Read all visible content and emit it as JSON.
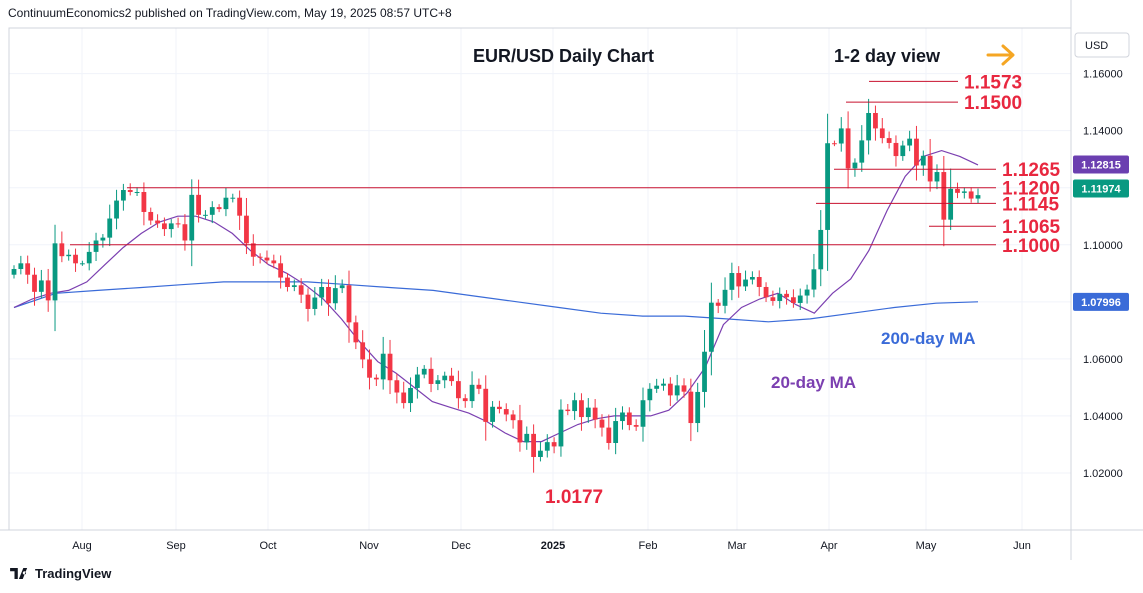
{
  "header": {
    "published_by": "ContinuumEconomics2 published on TradingView.com, May 19, 2025 08:57 UTC+8"
  },
  "footer": {
    "brand": "TradingView",
    "logo_icon": "tradingview-logo-icon"
  },
  "colors": {
    "up": "#089981",
    "down": "#f23645",
    "level_line": "#c8102e",
    "level_label": "#e8273f",
    "ma20": "#7b3fb0",
    "ma200": "#3a6bd8",
    "arrow": "#f5a623",
    "grid": "#f0f3fa"
  },
  "chart_data": {
    "type": "candlestick",
    "title": "EUR/USD Daily Chart",
    "subtitle": "1-2 day view",
    "direction_icon": "right-arrow-icon",
    "currency": "USD",
    "y_ticks": [
      "1.16000",
      "1.14000",
      "1.12000",
      "1.10000",
      "1.08000",
      "1.06000",
      "1.04000",
      "1.02000"
    ],
    "y_range": [
      1.0,
      1.176
    ],
    "x_range": [
      "2025-07-11",
      "2025-07-11"
    ],
    "x_ticks": [
      "Aug",
      "Sep",
      "Oct",
      "Nov",
      "Dec",
      "2025",
      "Feb",
      "Mar",
      "Apr",
      "May",
      "Jun"
    ],
    "price_labels": [
      {
        "text": "1.12815",
        "value": 1.12815,
        "color": "#6b3fb0"
      },
      {
        "text": "1.11974",
        "value": 1.11974,
        "color": "#089981"
      },
      {
        "text": "1.07996",
        "value": 1.07996,
        "color": "#3a6bd8"
      }
    ],
    "levels": [
      {
        "label": "1.1573",
        "value": 1.1573,
        "from": "Apr 21",
        "to": "May 20"
      },
      {
        "label": "1.1500",
        "value": 1.15,
        "from": "Apr 14",
        "to": "May 20"
      },
      {
        "label": "1.1265",
        "value": 1.1265,
        "from": "Apr 4",
        "to": "May 26"
      },
      {
        "label": "1.1200",
        "value": 1.12,
        "from": "Aug 11",
        "to": "May 26"
      },
      {
        "label": "1.1145",
        "value": 1.1145,
        "from": "Mar 31",
        "to": "May 26"
      },
      {
        "label": "1.1065",
        "value": 1.1065,
        "from": "May 12",
        "to": "May 26"
      },
      {
        "label": "1.1000",
        "value": 1.1,
        "from": "Jul 29",
        "to": "May 26"
      }
    ],
    "annotations": [
      {
        "text": "1.0177",
        "value": 1.0177
      },
      {
        "text": "200-day MA"
      },
      {
        "text": "20-day MA"
      }
    ],
    "series": [
      {
        "name": "EUR/USD",
        "values": [
          1.0915,
          1.0935,
          1.0895,
          1.0835,
          1.0875,
          1.0805,
          1.1005,
          1.096,
          1.0965,
          1.0935,
          1.0935,
          1.0975,
          1.1015,
          1.1025,
          1.1092,
          1.1155,
          1.1192,
          1.1185,
          1.1185,
          1.1115,
          1.1085,
          1.1075,
          1.1055,
          1.1075,
          1.1072,
          1.1015,
          1.1175,
          1.1105,
          1.1105,
          1.1132,
          1.1125,
          1.1165,
          1.1165,
          1.1102,
          1.1005,
          1.0958,
          1.0955,
          1.0945,
          1.0935,
          1.0885,
          1.0852,
          1.0858,
          1.0825,
          1.0775,
          1.0815,
          1.0852,
          1.0795,
          1.0848,
          1.0858,
          1.0728,
          1.0658,
          1.0598,
          1.0534,
          1.0528,
          1.0618,
          1.0525,
          1.0482,
          1.0445,
          1.0498,
          1.0545,
          1.0565,
          1.0512,
          1.0525,
          1.0541,
          1.0522,
          1.0462,
          1.0452,
          1.0509,
          1.0495,
          1.0379,
          1.0432,
          1.0424,
          1.0405,
          1.0385,
          1.0307,
          1.0337,
          1.0256,
          1.0278,
          1.0308,
          1.0293,
          1.0422,
          1.0417,
          1.0455,
          1.0396,
          1.0429,
          1.0387,
          1.0359,
          1.0305,
          1.0382,
          1.0412,
          1.0368,
          1.0362,
          1.0455,
          1.0495,
          1.0506,
          1.0513,
          1.0472,
          1.0507,
          1.0485,
          1.0375,
          1.0484,
          1.0625,
          1.0797,
          1.0786,
          1.0842,
          1.0901,
          1.0854,
          1.0878,
          1.0887,
          1.0852,
          1.0816,
          1.0803,
          1.0828,
          1.0816,
          1.0796,
          1.0822,
          1.0843,
          1.0914,
          1.1052,
          1.1356,
          1.1355,
          1.1408,
          1.1268,
          1.1288,
          1.1366,
          1.1462,
          1.1408,
          1.1374,
          1.1357,
          1.1311,
          1.1348,
          1.1372,
          1.1278,
          1.1312,
          1.1222,
          1.1255,
          1.1088,
          1.1196,
          1.1182,
          1.1187,
          1.1162,
          1.1174
        ]
      },
      {
        "name": "20-day MA",
        "values": [
          1.078,
          1.081,
          1.083,
          1.084,
          1.087,
          1.093,
          1.099,
          1.104,
          1.108,
          1.11,
          1.11,
          1.108,
          1.104,
          1.098,
          1.093,
          1.09,
          1.086,
          1.081,
          1.074,
          1.066,
          1.059,
          1.055,
          1.05,
          1.045,
          1.043,
          1.041,
          1.038,
          1.034,
          1.031,
          1.031,
          1.034,
          1.037,
          1.039,
          1.04,
          1.04,
          1.04,
          1.042,
          1.048,
          1.057,
          1.072,
          1.078,
          1.081,
          1.083,
          1.079,
          1.076,
          1.083,
          1.088,
          1.098,
          1.112,
          1.124,
          1.131,
          1.133,
          1.131,
          1.128
        ]
      },
      {
        "name": "200-day MA",
        "values": [
          1.078,
          1.083,
          1.084,
          1.085,
          1.086,
          1.087,
          1.087,
          1.087,
          1.086,
          1.085,
          1.084,
          1.082,
          1.08,
          1.078,
          1.076,
          1.075,
          1.075,
          1.074,
          1.073,
          1.074,
          1.076,
          1.078,
          1.0795,
          1.08
        ]
      }
    ]
  }
}
